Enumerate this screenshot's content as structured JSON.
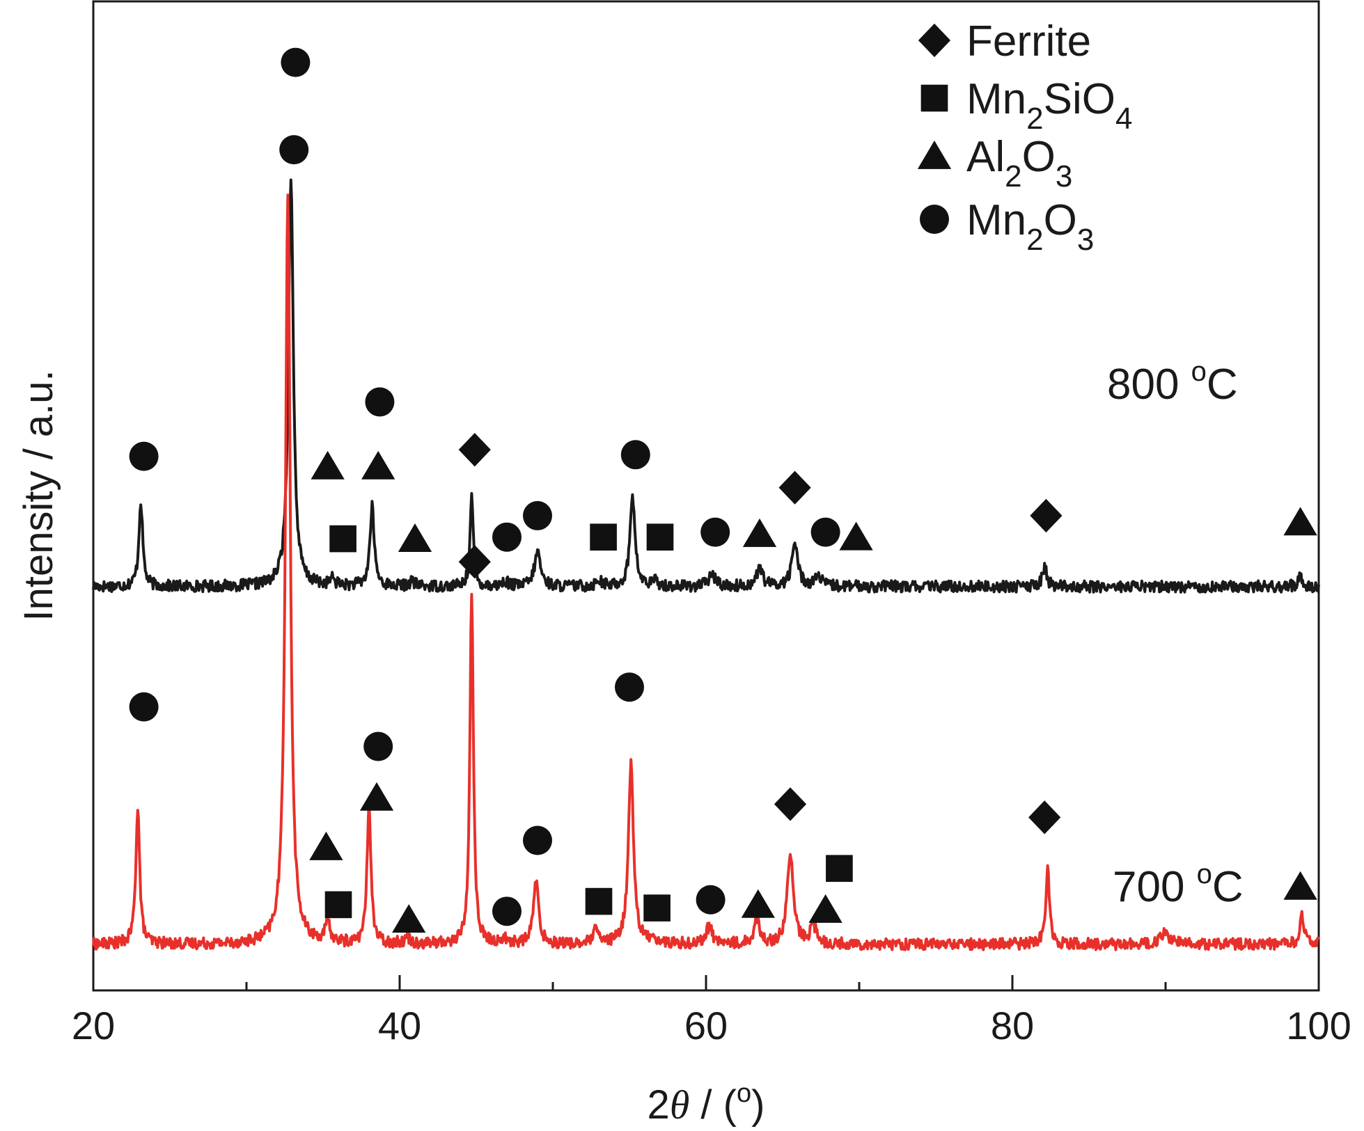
{
  "chart_data": {
    "type": "line",
    "xlabel": "2θ / (°)",
    "xlabel_parts": {
      "pre": "2",
      "theta": "θ",
      "mid": " / (",
      "deg": "o",
      "post": ")"
    },
    "ylabel": "Intensity / a.u.",
    "xlim": [
      20,
      100
    ],
    "xticks": [
      20,
      40,
      60,
      80,
      100
    ],
    "xticks_minor": [
      30,
      50,
      70,
      90
    ],
    "y_tick_labels": false,
    "legend": {
      "position": "top-right",
      "entries": [
        {
          "marker": "diamond",
          "parts": [
            {
              "t": "Ferrite"
            }
          ]
        },
        {
          "marker": "square",
          "parts": [
            {
              "t": "Mn"
            },
            {
              "t": "2",
              "sub": true
            },
            {
              "t": "SiO"
            },
            {
              "t": "4",
              "sub": true
            }
          ]
        },
        {
          "marker": "triangle",
          "parts": [
            {
              "t": "Al"
            },
            {
              "t": "2",
              "sub": true
            },
            {
              "t": "O"
            },
            {
              "t": "3",
              "sub": true
            }
          ]
        },
        {
          "marker": "circle",
          "parts": [
            {
              "t": "Mn"
            },
            {
              "t": "2",
              "sub": true
            },
            {
              "t": "O"
            },
            {
              "t": "3",
              "sub": true
            }
          ]
        }
      ]
    },
    "series": [
      {
        "name": "800 °C",
        "label": {
          "value": "800",
          "deg": "o",
          "unit": "C"
        },
        "color": "#1a1a1a",
        "baseline": 24.5,
        "noise": 0.35,
        "peaks": [
          {
            "x": 23.1,
            "h": 5.2,
            "w": 0.22
          },
          {
            "x": 32.9,
            "h": 25.0,
            "w": 0.28
          },
          {
            "x": 35.6,
            "h": 0.4,
            "w": 0.3
          },
          {
            "x": 38.2,
            "h": 4.8,
            "w": 0.25
          },
          {
            "x": 40.8,
            "h": 0.3,
            "w": 0.3
          },
          {
            "x": 44.7,
            "h": 5.5,
            "w": 0.18
          },
          {
            "x": 46.9,
            "h": 0.3,
            "w": 0.3
          },
          {
            "x": 49.0,
            "h": 2.1,
            "w": 0.35
          },
          {
            "x": 53.0,
            "h": 0.4,
            "w": 0.3
          },
          {
            "x": 55.2,
            "h": 5.6,
            "w": 0.28
          },
          {
            "x": 56.7,
            "h": 0.3,
            "w": 0.3
          },
          {
            "x": 60.4,
            "h": 0.7,
            "w": 0.4
          },
          {
            "x": 63.5,
            "h": 1.1,
            "w": 0.35
          },
          {
            "x": 65.8,
            "h": 2.6,
            "w": 0.35
          },
          {
            "x": 67.3,
            "h": 0.6,
            "w": 0.4
          },
          {
            "x": 82.1,
            "h": 1.2,
            "w": 0.25
          },
          {
            "x": 98.8,
            "h": 0.6,
            "w": 0.25
          }
        ],
        "markers": [
          {
            "x": 23.3,
            "y": 32.4,
            "m": "circle"
          },
          {
            "x": 33.2,
            "y": 56.3,
            "m": "circle"
          },
          {
            "x": 35.3,
            "y": 31.8,
            "m": "triangle"
          },
          {
            "x": 36.3,
            "y": 27.4,
            "m": "square"
          },
          {
            "x": 38.7,
            "y": 35.7,
            "m": "circle"
          },
          {
            "x": 38.6,
            "y": 31.8,
            "m": "triangle"
          },
          {
            "x": 41.0,
            "y": 27.4,
            "m": "triangle"
          },
          {
            "x": 44.9,
            "y": 32.8,
            "m": "diamond"
          },
          {
            "x": 47.0,
            "y": 27.5,
            "m": "circle"
          },
          {
            "x": 49.0,
            "y": 28.8,
            "m": "circle"
          },
          {
            "x": 53.3,
            "y": 27.5,
            "m": "square"
          },
          {
            "x": 55.4,
            "y": 32.5,
            "m": "circle"
          },
          {
            "x": 57.0,
            "y": 27.5,
            "m": "square"
          },
          {
            "x": 60.6,
            "y": 27.8,
            "m": "circle"
          },
          {
            "x": 63.5,
            "y": 27.7,
            "m": "triangle"
          },
          {
            "x": 65.8,
            "y": 30.5,
            "m": "diamond"
          },
          {
            "x": 67.8,
            "y": 27.8,
            "m": "circle"
          },
          {
            "x": 69.8,
            "y": 27.5,
            "m": "triangle"
          },
          {
            "x": 82.2,
            "y": 28.8,
            "m": "diamond"
          },
          {
            "x": 98.8,
            "y": 28.4,
            "m": "triangle"
          }
        ]
      },
      {
        "name": "700 °C",
        "label": {
          "value": "700",
          "deg": "o",
          "unit": "C"
        },
        "color": "#e8302a",
        "baseline": 2.8,
        "noise": 0.35,
        "peaks": [
          {
            "x": 22.9,
            "h": 8.4,
            "w": 0.22
          },
          {
            "x": 32.7,
            "h": 45.5,
            "w": 0.28
          },
          {
            "x": 35.3,
            "h": 1.1,
            "w": 0.3
          },
          {
            "x": 38.0,
            "h": 8.6,
            "w": 0.22
          },
          {
            "x": 40.5,
            "h": 0.4,
            "w": 0.3
          },
          {
            "x": 44.7,
            "h": 21.5,
            "w": 0.2
          },
          {
            "x": 46.8,
            "h": 0.3,
            "w": 0.3
          },
          {
            "x": 48.9,
            "h": 3.8,
            "w": 0.3
          },
          {
            "x": 52.8,
            "h": 0.8,
            "w": 0.3
          },
          {
            "x": 55.1,
            "h": 10.9,
            "w": 0.3
          },
          {
            "x": 56.5,
            "h": 0.4,
            "w": 0.3
          },
          {
            "x": 60.2,
            "h": 1.0,
            "w": 0.4
          },
          {
            "x": 63.3,
            "h": 1.6,
            "w": 0.3
          },
          {
            "x": 65.5,
            "h": 5.5,
            "w": 0.35
          },
          {
            "x": 67.0,
            "h": 1.1,
            "w": 0.35
          },
          {
            "x": 82.3,
            "h": 4.6,
            "w": 0.22
          },
          {
            "x": 90.0,
            "h": 0.7,
            "w": 0.5
          },
          {
            "x": 98.9,
            "h": 1.7,
            "w": 0.25
          }
        ],
        "markers": [
          {
            "x": 23.3,
            "y": 17.2,
            "m": "circle"
          },
          {
            "x": 33.1,
            "y": 51.0,
            "m": "circle"
          },
          {
            "x": 35.2,
            "y": 8.7,
            "m": "triangle"
          },
          {
            "x": 36.0,
            "y": 5.2,
            "m": "square"
          },
          {
            "x": 38.6,
            "y": 14.8,
            "m": "circle"
          },
          {
            "x": 38.5,
            "y": 11.7,
            "m": "triangle"
          },
          {
            "x": 40.6,
            "y": 4.3,
            "m": "triangle"
          },
          {
            "x": 44.9,
            "y": 26.0,
            "m": "diamond"
          },
          {
            "x": 47.0,
            "y": 4.8,
            "m": "circle"
          },
          {
            "x": 49.0,
            "y": 9.1,
            "m": "circle"
          },
          {
            "x": 53.0,
            "y": 5.4,
            "m": "square"
          },
          {
            "x": 55.0,
            "y": 18.4,
            "m": "circle"
          },
          {
            "x": 56.8,
            "y": 5.0,
            "m": "square"
          },
          {
            "x": 60.3,
            "y": 5.5,
            "m": "circle"
          },
          {
            "x": 63.4,
            "y": 5.2,
            "m": "triangle"
          },
          {
            "x": 65.5,
            "y": 11.3,
            "m": "diamond"
          },
          {
            "x": 67.8,
            "y": 4.9,
            "m": "triangle"
          },
          {
            "x": 68.7,
            "y": 7.4,
            "m": "square"
          },
          {
            "x": 82.1,
            "y": 10.5,
            "m": "diamond"
          },
          {
            "x": 98.8,
            "y": 6.3,
            "m": "triangle"
          }
        ]
      }
    ]
  }
}
